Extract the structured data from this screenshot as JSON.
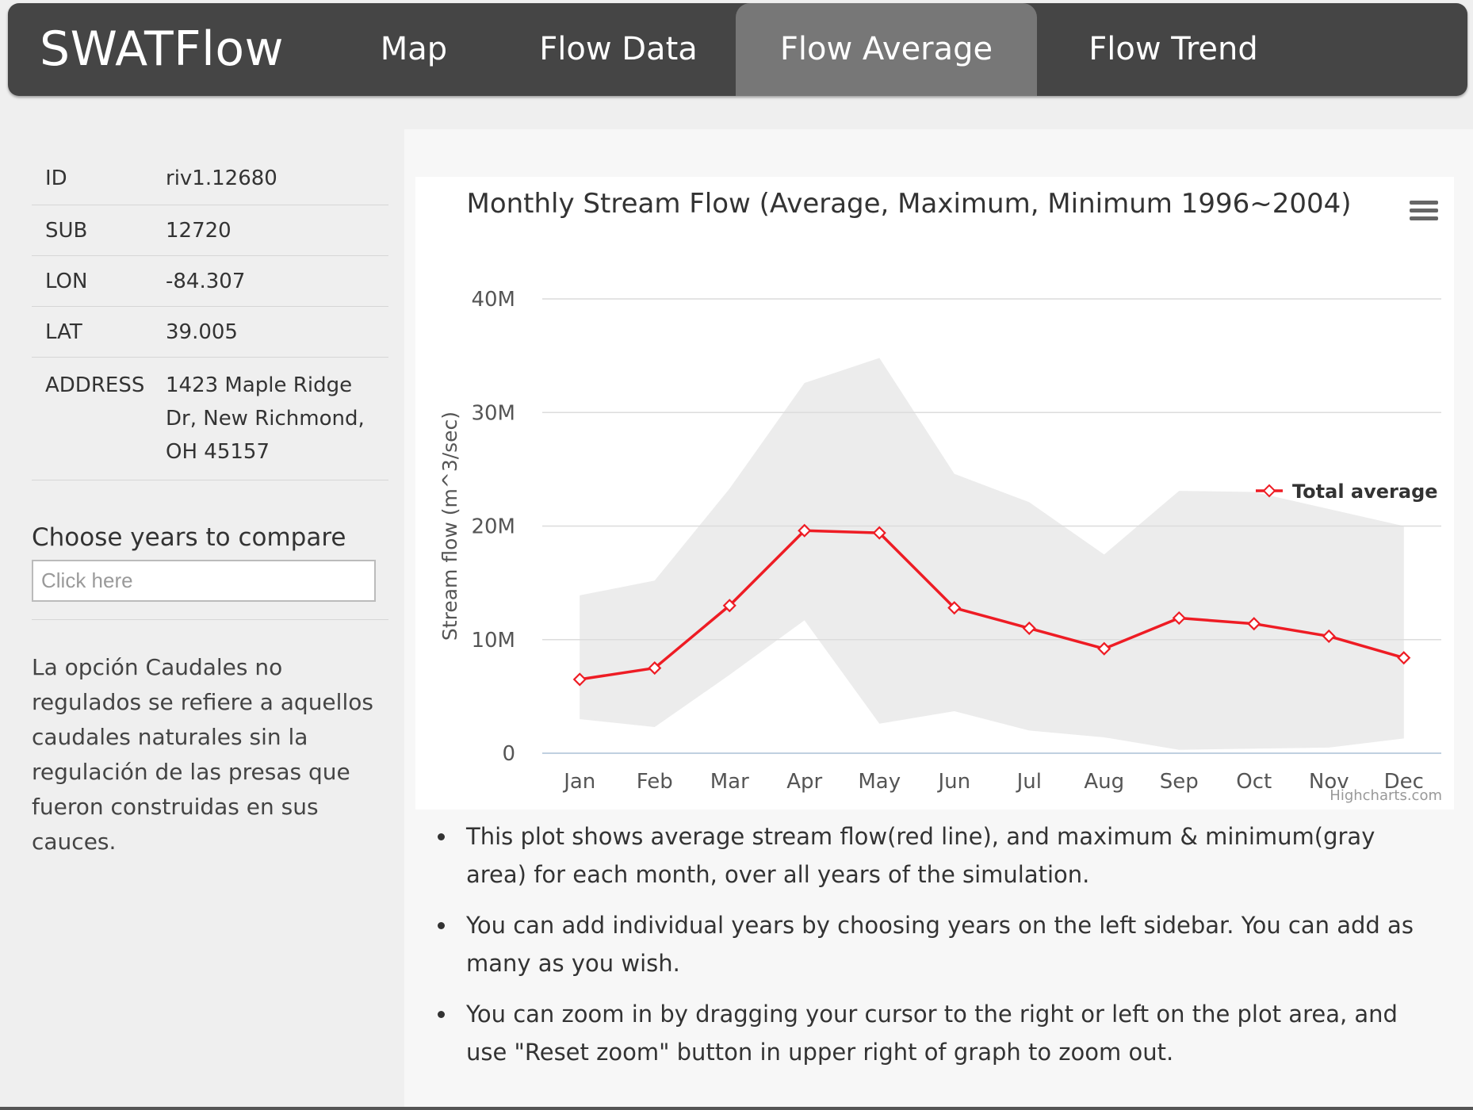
{
  "navbar": {
    "brand": "SWATFlow",
    "tabs": [
      {
        "label": "Map",
        "active": false
      },
      {
        "label": "Flow Data",
        "active": false
      },
      {
        "label": "Flow Average",
        "active": true
      },
      {
        "label": "Flow Trend",
        "active": false
      }
    ]
  },
  "sidebar": {
    "info": [
      {
        "key": "ID",
        "value": "riv1.12680"
      },
      {
        "key": "SUB",
        "value": "12720"
      },
      {
        "key": "LON",
        "value": "-84.307"
      },
      {
        "key": "LAT",
        "value": "39.005"
      },
      {
        "key": "ADDRESS",
        "value": "1423 Maple Ridge Dr, New Richmond, OH 45157"
      }
    ],
    "chooser_label": "Choose years to compare",
    "chooser_placeholder": "Click here",
    "note": "La opción Caudales no regulados se refiere a aquellos caudales naturales sin la regulación de las presas que fueron construidas en sus cauces."
  },
  "chart_data": {
    "type": "line",
    "title": "Monthly Stream Flow (Average, Maximum, Minimum 1996~2004)",
    "ylabel": "Stream flow (m^3/sec)",
    "xlabel": "",
    "categories": [
      "Jan",
      "Feb",
      "Mar",
      "Apr",
      "May",
      "Jun",
      "Jul",
      "Aug",
      "Sep",
      "Oct",
      "Nov",
      "Dec"
    ],
    "ylim": [
      0,
      40000000
    ],
    "yticks": [
      0,
      10000000,
      20000000,
      30000000,
      40000000
    ],
    "ytick_labels": [
      "0",
      "10M",
      "20M",
      "30M",
      "40M"
    ],
    "grid": true,
    "legend_position": "right",
    "series": [
      {
        "name": "Total average",
        "color": "#ee1c24",
        "values": [
          6500000,
          7500000,
          13000000,
          19600000,
          19400000,
          12800000,
          11000000,
          9200000,
          11900000,
          11400000,
          10300000,
          8400000
        ]
      }
    ],
    "range": {
      "color": "#ececec",
      "max": [
        13900000,
        15200000,
        23300000,
        32600000,
        34800000,
        24600000,
        22100000,
        17500000,
        23100000,
        23000000,
        21500000,
        20000000
      ],
      "min": [
        3000000,
        2300000,
        6900000,
        11700000,
        2600000,
        3700000,
        2000000,
        1400000,
        300000,
        400000,
        500000,
        1300000
      ]
    },
    "credit": "Highcharts.com"
  },
  "notes": [
    "This plot shows average stream flow(red line), and maximum & minimum(gray area) for each month, over all years of the simulation.",
    "You can add individual years by choosing years on the left sidebar. You can add as many as you wish.",
    "You can zoom in by dragging your cursor to the right or left on the plot area, and use \"Reset zoom\" button in upper right of graph to zoom out."
  ]
}
